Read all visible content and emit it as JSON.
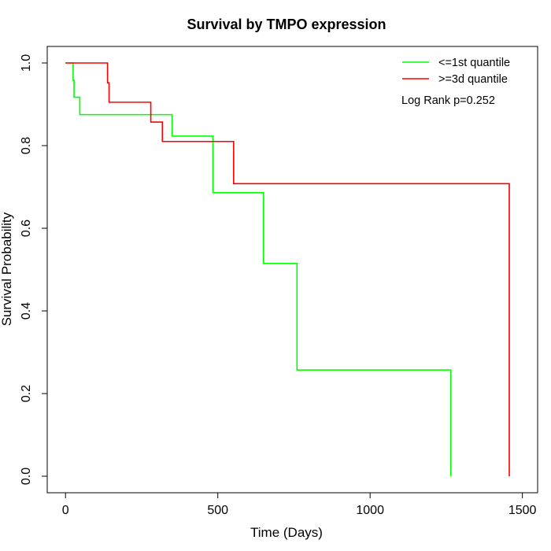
{
  "chart_data": {
    "type": "line",
    "title": "Survival by TMPO expression",
    "xlabel": "Time (Days)",
    "ylabel": "Survival Probability",
    "xlim": [
      -60,
      1550
    ],
    "ylim": [
      -0.04,
      1.04
    ],
    "x_ticks": [
      0,
      500,
      1000,
      1500
    ],
    "y_ticks": [
      0.0,
      0.2,
      0.4,
      0.6,
      0.8,
      1.0
    ],
    "x_tick_labels": [
      "0",
      "500",
      "1000",
      "1500"
    ],
    "y_tick_labels": [
      "0.0",
      "0.2",
      "0.4",
      "0.6",
      "0.8",
      "1.0"
    ],
    "annotation": "Log Rank p=0.252",
    "legend_position": "top-right",
    "series": [
      {
        "name": "<=1st quantile",
        "color": "#00ff00",
        "steps": [
          [
            0,
            1.0
          ],
          [
            25,
            0.958
          ],
          [
            28,
            0.917
          ],
          [
            47,
            0.875
          ],
          [
            350,
            0.823
          ],
          [
            484,
            0.686
          ],
          [
            650,
            0.515
          ],
          [
            760,
            0.257
          ],
          [
            1265,
            0.0
          ]
        ],
        "end_x": 1265
      },
      {
        "name": ">=3d quantile",
        "color": "#ff0000",
        "steps": [
          [
            0,
            1.0
          ],
          [
            138,
            0.952
          ],
          [
            143,
            0.905
          ],
          [
            280,
            0.857
          ],
          [
            318,
            0.81
          ],
          [
            552,
            0.708
          ],
          [
            1457,
            0.0
          ]
        ],
        "end_x": 1457
      }
    ]
  }
}
